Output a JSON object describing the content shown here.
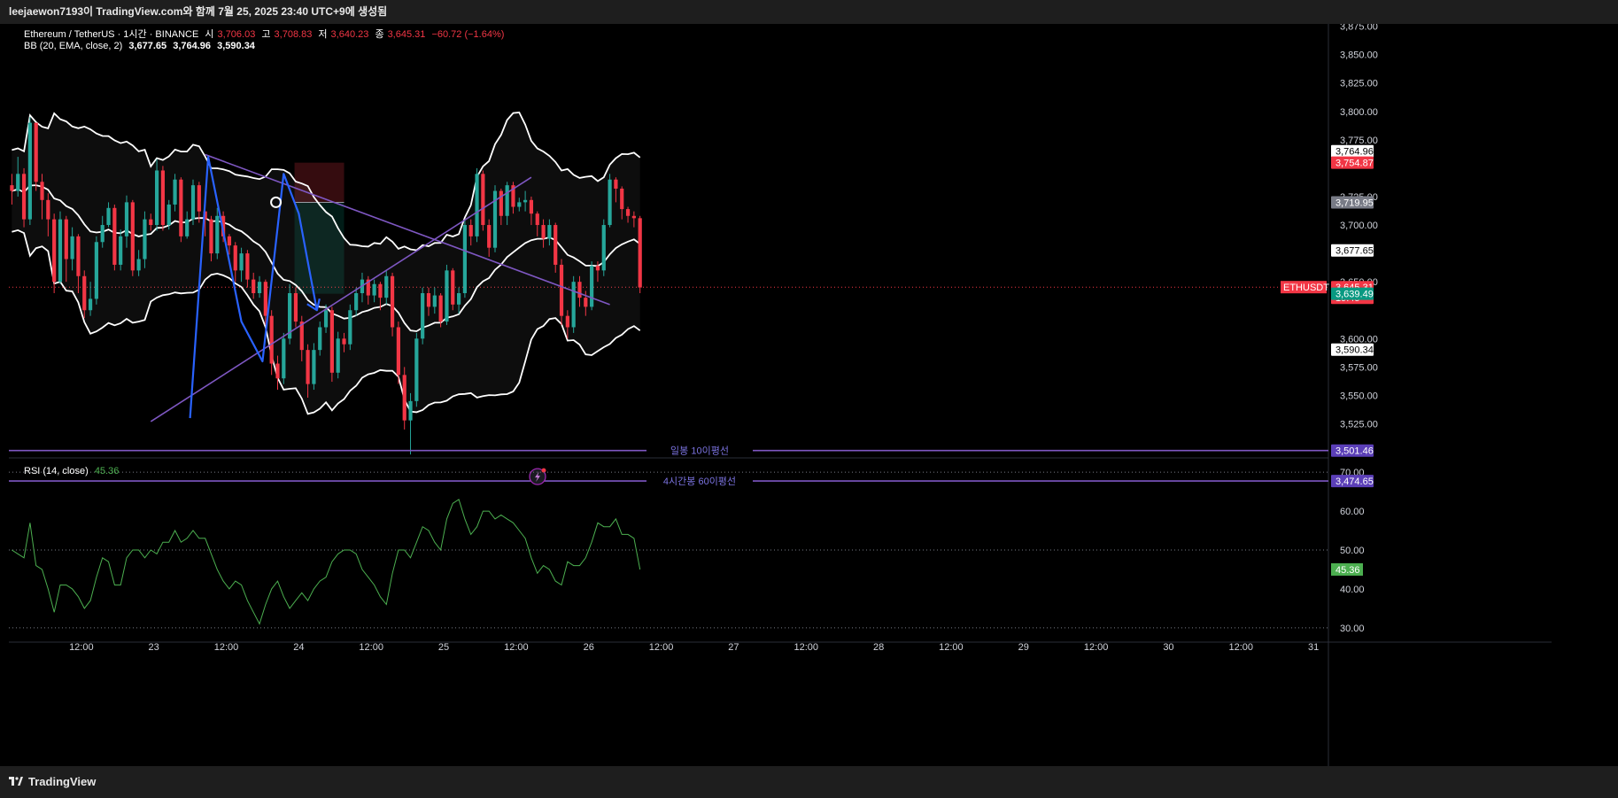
{
  "header": {
    "title": "leejaewon7193이 TradingView.com와 함께 7월 25, 2025 23:40 UTC+9에 생성됨"
  },
  "legend": {
    "symbol": "Ethereum / TetherUS · 1시간 · BINANCE",
    "open_label": "시",
    "open": "3,706.03",
    "high_label": "고",
    "high": "3,708.83",
    "low_label": "저",
    "low": "3,640.23",
    "close_label": "종",
    "close": "3,645.31",
    "change": "−60.72 (−1.64%)",
    "bb_label": "BB (20, EMA, close, 2)",
    "bb_mid": "3,677.65",
    "bb_up": "3,764.96",
    "bb_low": "3,590.34",
    "rsi_label": "RSI (14, close)",
    "rsi_value": "45.36"
  },
  "footer": {
    "brand": "TradingView"
  },
  "price_tags": {
    "bb_upper": "3,764.96",
    "stop": "3,754.87",
    "entry": "3,719.95",
    "bb_mid": "3,677.65",
    "last_symbol": "ETHUSDT",
    "last_price": "3,645.31",
    "countdown": "19:45",
    "target": "3,639.49",
    "bb_lower": "3,590.34",
    "daily_ma": "3,501.46",
    "h4_ma": "3,474.65"
  },
  "level_lines": {
    "daily_label": "일봉 10이평선",
    "h4_label": "4시간봉 60이평선"
  },
  "colors": {
    "up": "#26a69a",
    "down": "#f23645",
    "band": "#ffffff",
    "trend": "#7e57c2",
    "pattern": "#2962ff",
    "rsi": "#4caf50"
  },
  "chart_data": {
    "type": "candlestick",
    "timeframe": "1h",
    "price_axis": {
      "ticks": [
        "3,875.00",
        "3,850.00",
        "3,825.00",
        "3,800.00",
        "3,775.00",
        "3,725.00",
        "3,700.00",
        "3,650.00",
        "3,600.00",
        "3,575.00",
        "3,550.00",
        "3,525.00"
      ],
      "range": [
        3495,
        3877
      ]
    },
    "time_axis": {
      "labels": [
        "12:00",
        "23",
        "12:00",
        "24",
        "12:00",
        "25",
        "12:00",
        "26",
        "12:00",
        "27",
        "12:00",
        "28",
        "12:00",
        "29",
        "12:00",
        "30",
        "12:00",
        "31"
      ],
      "first_label_hours": 12,
      "label_step_hours": 12
    },
    "candles_start_hours": 0,
    "candles_close": [
      3730,
      3745,
      3705,
      3790,
      3738,
      3722,
      3705,
      3650,
      3705,
      3670,
      3690,
      3655,
      3625,
      3635,
      3685,
      3700,
      3715,
      3665,
      3690,
      3720,
      3660,
      3670,
      3705,
      3700,
      3748,
      3700,
      3718,
      3740,
      3690,
      3705,
      3735,
      3712,
      3705,
      3675,
      3708,
      3690,
      3682,
      3660,
      3675,
      3652,
      3640,
      3650,
      3620,
      3578,
      3565,
      3600,
      3640,
      3615,
      3590,
      3560,
      3590,
      3610,
      3625,
      3570,
      3600,
      3595,
      3625,
      3640,
      3652,
      3638,
      3648,
      3636,
      3655,
      3610,
      3568,
      3528,
      3545,
      3600,
      3640,
      3628,
      3638,
      3615,
      3660,
      3630,
      3640,
      3700,
      3690,
      3745,
      3700,
      3680,
      3730,
      3708,
      3735,
      3716,
      3720,
      3722,
      3710,
      3700,
      3688,
      3700,
      3665,
      3620,
      3610,
      3650,
      3636,
      3628,
      3664,
      3660,
      3700,
      3740,
      3732,
      3714,
      3708,
      3706,
      3645
    ],
    "candles_open_first": 3735,
    "candles_wick_high": [
      3745,
      3760,
      3750,
      3795,
      3790,
      3745,
      3728,
      3710,
      3712,
      3708,
      3698,
      3692,
      3660,
      3650,
      3690,
      3708,
      3720,
      3718,
      3696,
      3726,
      3722,
      3678,
      3712,
      3710,
      3758,
      3752,
      3722,
      3745,
      3742,
      3712,
      3740,
      3738,
      3712,
      3708,
      3715,
      3712,
      3692,
      3685,
      3680,
      3678,
      3658,
      3655,
      3652,
      3625,
      3585,
      3605,
      3648,
      3645,
      3620,
      3595,
      3596,
      3615,
      3630,
      3628,
      3606,
      3605,
      3630,
      3645,
      3658,
      3655,
      3652,
      3650,
      3660,
      3658,
      3615,
      3575,
      3552,
      3605,
      3645,
      3645,
      3645,
      3640,
      3665,
      3662,
      3645,
      3705,
      3705,
      3750,
      3748,
      3705,
      3735,
      3732,
      3738,
      3738,
      3724,
      3730,
      3725,
      3712,
      3705,
      3705,
      3702,
      3670,
      3625,
      3655,
      3655,
      3642,
      3668,
      3668,
      3705,
      3745,
      3742,
      3734,
      3716,
      3712,
      3708
    ],
    "candles_wick_low": [
      3718,
      3725,
      3698,
      3700,
      3730,
      3705,
      3690,
      3640,
      3648,
      3650,
      3660,
      3640,
      3618,
      3620,
      3630,
      3680,
      3698,
      3660,
      3660,
      3680,
      3655,
      3655,
      3662,
      3695,
      3695,
      3695,
      3696,
      3712,
      3685,
      3688,
      3700,
      3702,
      3690,
      3668,
      3670,
      3685,
      3674,
      3650,
      3650,
      3645,
      3635,
      3636,
      3612,
      3568,
      3555,
      3560,
      3595,
      3610,
      3580,
      3548,
      3555,
      3585,
      3605,
      3562,
      3565,
      3588,
      3590,
      3620,
      3632,
      3630,
      3632,
      3625,
      3630,
      3602,
      3560,
      3520,
      3498,
      3540,
      3595,
      3620,
      3622,
      3610,
      3612,
      3625,
      3622,
      3636,
      3682,
      3685,
      3695,
      3672,
      3676,
      3700,
      3700,
      3710,
      3712,
      3712,
      3700,
      3690,
      3680,
      3682,
      3658,
      3612,
      3600,
      3605,
      3628,
      3620,
      3625,
      3650,
      3655,
      3698,
      3720,
      3705,
      3702,
      3698,
      3640
    ],
    "rsi_axis": {
      "ticks": [
        "70.00",
        "60.00",
        "50.00",
        "40.00",
        "30.00"
      ],
      "range": [
        27,
        73
      ]
    },
    "rsi": [
      50,
      49,
      48,
      57,
      46,
      45,
      40,
      34,
      41,
      41,
      40,
      38,
      35,
      37,
      43,
      48,
      47,
      41,
      41,
      48,
      50,
      50,
      48,
      50,
      49,
      52,
      52,
      55,
      52,
      53,
      55,
      53,
      53,
      49,
      45,
      42,
      40,
      42,
      41,
      37,
      34,
      31,
      36,
      40,
      42,
      38,
      35,
      37,
      39,
      37,
      40,
      42,
      43,
      47,
      49,
      50,
      50,
      49,
      45,
      43,
      41,
      38,
      36,
      44,
      50,
      50,
      48,
      52,
      56,
      55,
      52,
      50,
      58,
      62,
      63,
      58,
      54,
      56,
      60,
      60,
      58,
      59,
      58,
      57,
      55,
      53,
      48,
      44,
      46,
      45,
      42,
      41,
      47,
      46,
      46,
      48,
      52,
      57,
      56,
      56,
      58,
      54,
      54,
      53,
      45
    ]
  },
  "overlays": {
    "bollinger": "BB (20, EMA, close, 2)",
    "trendlines": [
      {
        "t1": 32.5,
        "p1": 3762,
        "t2": 99.5,
        "p2": 3630
      },
      {
        "t1": 23.5,
        "p1": 3527,
        "t2": 86.5,
        "p2": 3742
      }
    ],
    "pattern_path": [
      [
        30,
        3530
      ],
      [
        33,
        3760
      ],
      [
        38.5,
        3615
      ],
      [
        42,
        3580
      ],
      [
        45.5,
        3745
      ],
      [
        48,
        3710
      ],
      [
        51,
        3625
      ]
    ],
    "position": {
      "entry": 3719.95,
      "stop": 3754.87,
      "target": 3639.49,
      "t_start": 47.3,
      "t_end": 55.5
    },
    "level_lines": [
      3501.46,
      3474.65
    ]
  }
}
